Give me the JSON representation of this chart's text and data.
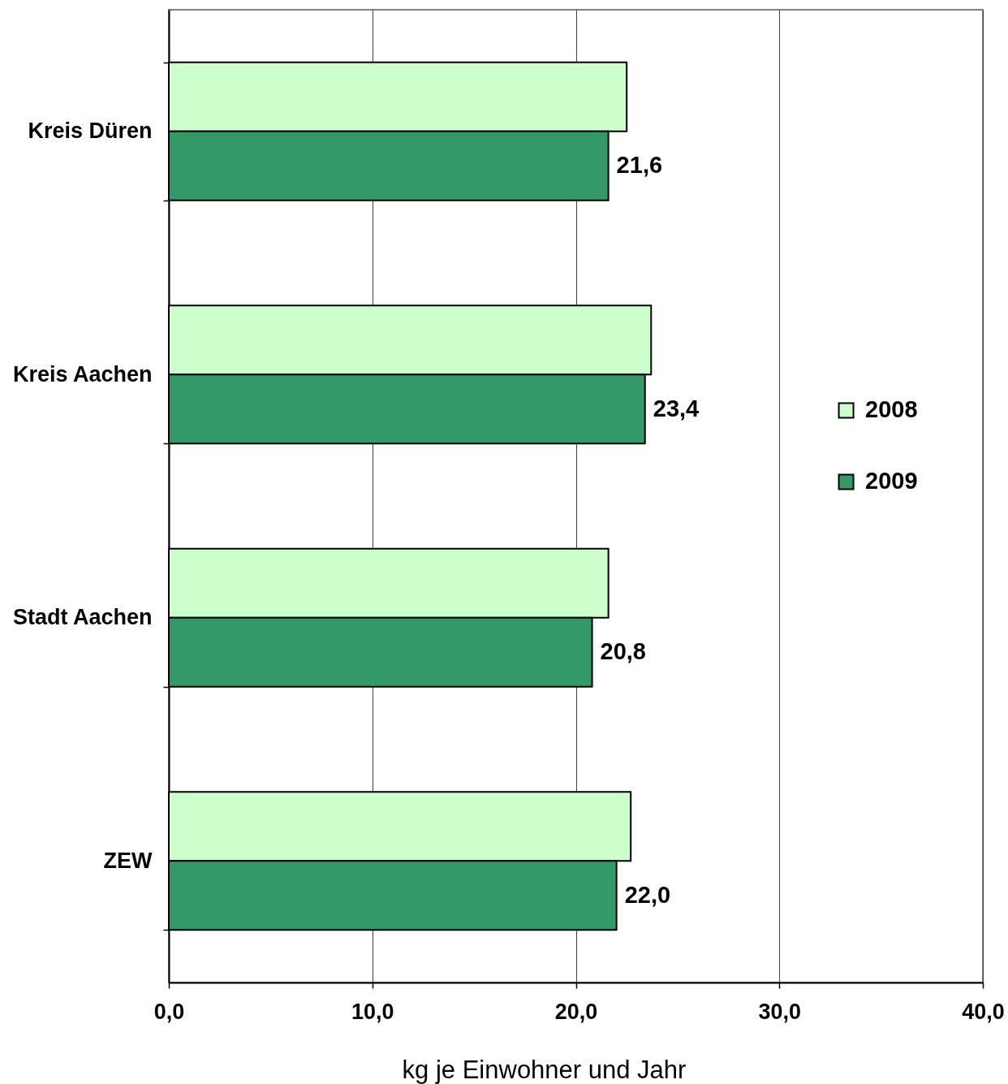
{
  "chart_data": {
    "type": "bar",
    "orientation": "horizontal",
    "xlabel": "kg je Einwohner und Jahr",
    "categories": [
      "Kreis Düren",
      "Kreis Aachen",
      "Stadt Aachen",
      "ZEW"
    ],
    "series": [
      {
        "name": "2008",
        "color": "#ccffcc",
        "values": [
          22.5,
          23.7,
          21.6,
          22.7
        ]
      },
      {
        "name": "2009",
        "color": "#339966",
        "values": [
          21.6,
          23.4,
          20.8,
          22.0
        ],
        "value_labels": [
          "21,6",
          "23,4",
          "20,8",
          "22,0"
        ]
      }
    ],
    "xlim": [
      0,
      40
    ],
    "xticks": [
      {
        "value": 0,
        "label": "0,0"
      },
      {
        "value": 10,
        "label": "10,0"
      },
      {
        "value": 20,
        "label": "20,0"
      },
      {
        "value": 30,
        "label": "30,0"
      },
      {
        "value": 40,
        "label": "40,0"
      }
    ],
    "grid": "x",
    "legend": "right"
  }
}
